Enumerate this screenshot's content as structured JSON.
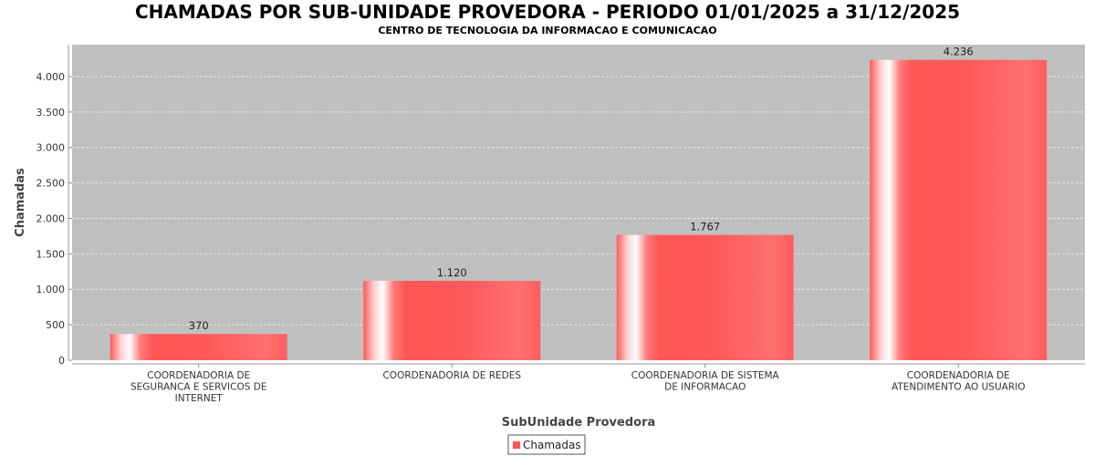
{
  "chart_data": {
    "type": "bar",
    "title": "CHAMADAS POR SUB-UNIDADE PROVEDORA - PERIODO 01/01/2025 a 31/12/2025",
    "subtitle": "CENTRO DE TECNOLOGIA DA INFORMACAO E COMUNICACAO",
    "xlabel": "SubUnidade Provedora",
    "ylabel": "Chamadas",
    "categories": [
      "COORDENADORIA DE SEGURANCA E SERVICOS DE INTERNET",
      "COORDENADORIA DE REDES",
      "COORDENADORIA DE SISTEMA DE INFORMACAO",
      "COORDENADORIA DE ATENDIMENTO AO USUARIO"
    ],
    "category_label_lines": [
      [
        "COORDENADORIA DE",
        "SEGURANCA E SERVICOS DE",
        "INTERNET"
      ],
      [
        "COORDENADORIA DE REDES"
      ],
      [
        "COORDENADORIA DE SISTEMA",
        "DE INFORMACAO"
      ],
      [
        "COORDENADORIA DE",
        "ATENDIMENTO AO USUARIO"
      ]
    ],
    "series": [
      {
        "name": "Chamadas",
        "values": [
          370,
          1120,
          1767,
          4236
        ]
      }
    ],
    "data_labels": [
      "370",
      "1.120",
      "1.767",
      "4.236"
    ],
    "ylim": [
      0,
      4450
    ],
    "yticks": [
      0,
      500,
      1000,
      1500,
      2000,
      2500,
      3000,
      3500,
      4000
    ],
    "ytick_labels": [
      "0",
      "500",
      "1.000",
      "1.500",
      "2.000",
      "2.500",
      "3.000",
      "3.500",
      "4.000"
    ],
    "grid": true,
    "legend": "bottom-center",
    "colors": {
      "bar": "#ff5555",
      "plot_background": "#c0c0c0",
      "gridline": "#e8e8e8"
    }
  }
}
